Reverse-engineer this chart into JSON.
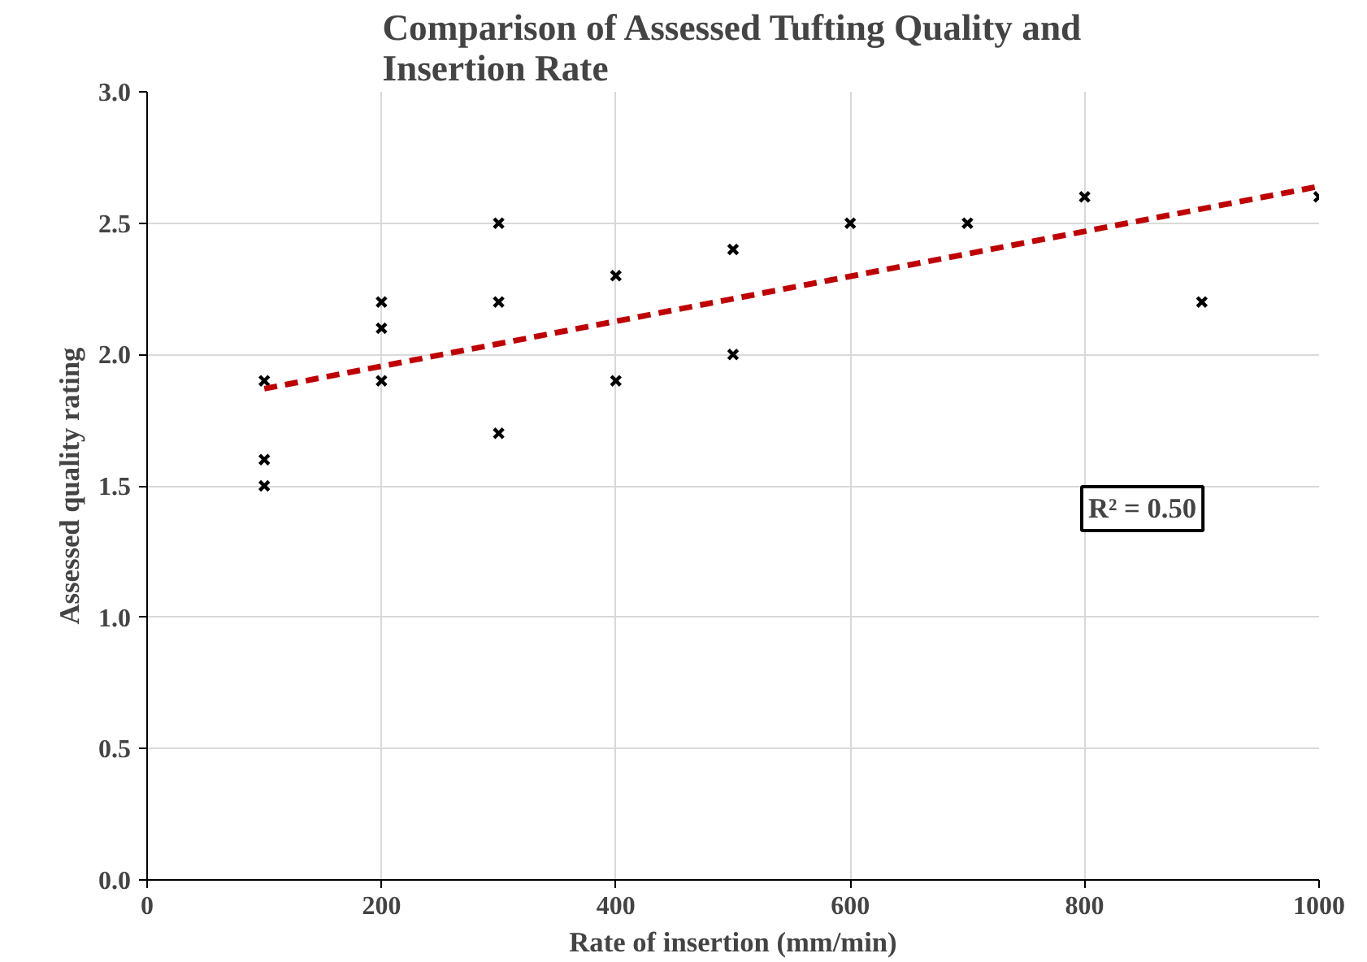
{
  "chart_data": {
    "type": "scatter",
    "title": "Comparison of Assessed Tufting Quality and Insertion Rate",
    "xlabel": "Rate of insertion (mm/min)",
    "ylabel": "Assessed quality rating",
    "series": [
      {
        "type": "scatter",
        "color": "#000000",
        "marker": "cross",
        "x": [
          100,
          100,
          100,
          200,
          200,
          200,
          300,
          300,
          300,
          400,
          400,
          500,
          500,
          600,
          700,
          800,
          900,
          1000
        ],
        "values": [
          1.9,
          1.6,
          1.5,
          2.2,
          2.1,
          1.9,
          2.5,
          2.2,
          1.7,
          2.3,
          1.9,
          2.4,
          2.0,
          2.5,
          2.5,
          2.6,
          2.2,
          2.6
        ]
      },
      {
        "type": "line",
        "color": "#c00000",
        "line_style": "dashed",
        "x": [
          100,
          1000
        ],
        "values": [
          1.87,
          2.64
        ]
      }
    ],
    "annotations": [
      "R² = 0.50"
    ],
    "xlim": [
      0,
      1000
    ],
    "xticks": [
      0,
      200,
      400,
      600,
      800,
      1000
    ],
    "ylim": [
      0,
      3
    ],
    "yticks": [
      {
        "value": 0,
        "label": "0.0"
      },
      {
        "value": 0.5,
        "label": "0.5"
      },
      {
        "value": 1,
        "label": "1.0"
      },
      {
        "value": 1.5,
        "label": "1.5"
      },
      {
        "value": 2,
        "label": "2.0"
      },
      {
        "value": 2.5,
        "label": "2.5"
      },
      {
        "value": 3,
        "label": "3.0"
      }
    ],
    "grid": true,
    "legend": false
  }
}
